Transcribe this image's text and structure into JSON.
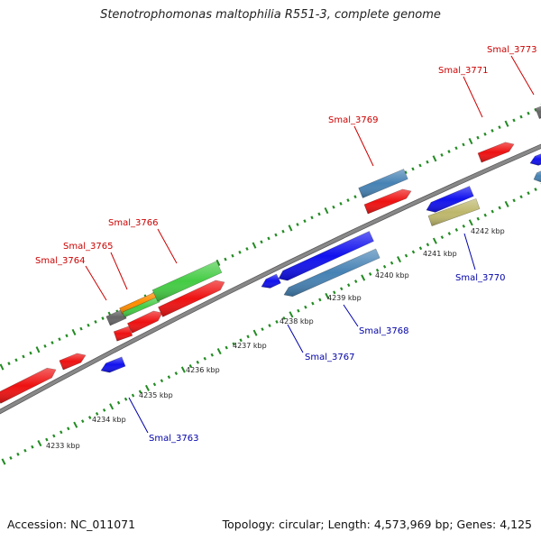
{
  "title": "Stenotrophomonas maltophilia R551-3, complete genome",
  "footer": {
    "accession": "Accession: NC_011071",
    "stats": "Topology: circular; Length: 4,573,969 bp; Genes: 4,125"
  },
  "colors": {
    "backbone": "#888888",
    "tick": "#228b22",
    "label_forward": "#cc0000",
    "label_reverse": "#0000aa",
    "kbp_label": "#222222",
    "gene_red": "#ee1111",
    "gene_blue": "#1111ee",
    "gene_steel": "#4682b4",
    "gene_green": "#44cc44",
    "gene_orange": "#ff8c00",
    "gene_gray": "#666666",
    "gene_khaki": "#bdb76b"
  },
  "kbp_labels": [
    "4233 kbp",
    "4234 kbp",
    "4235 kbp",
    "4236 kbp",
    "4237 kbp",
    "4238 kbp",
    "4239 kbp",
    "4240 kbp",
    "4241 kbp",
    "4242 kbp"
  ],
  "gene_labels": {
    "forward": [
      "Smal_3764",
      "Smal_3765",
      "Smal_3766",
      "Smal_3769",
      "Smal_3771",
      "Smal_3773"
    ],
    "reverse": [
      "Smal_3763",
      "Smal_3767",
      "Smal_3768",
      "Smal_3770"
    ]
  }
}
